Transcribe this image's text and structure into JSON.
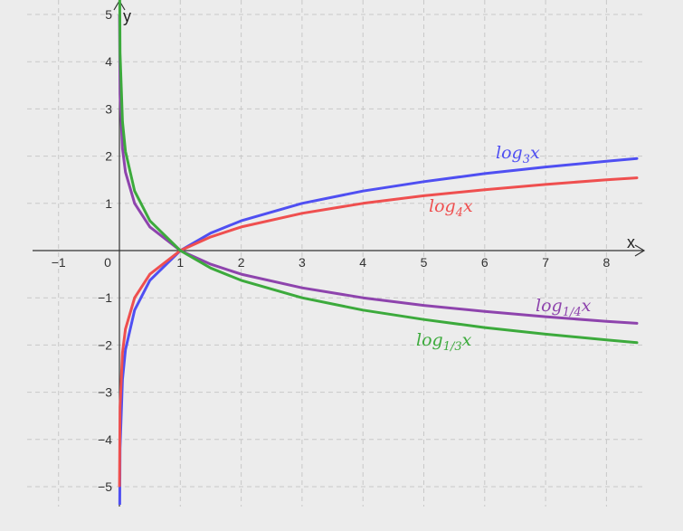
{
  "chart_data": {
    "type": "line",
    "title": "",
    "xlabel": "x",
    "ylabel": "y",
    "xlim": [
      -1.5,
      8.5
    ],
    "ylim": [
      -5.4,
      5.3
    ],
    "grid": true,
    "x_ticks": [
      "−1",
      "0",
      "1",
      "2",
      "3",
      "4",
      "5",
      "6",
      "7",
      "8"
    ],
    "x_tick_values": [
      -1,
      0,
      1,
      2,
      3,
      4,
      5,
      6,
      7,
      8
    ],
    "y_ticks": [
      "5",
      "4",
      "3",
      "2",
      "1",
      "−1",
      "−2",
      "−3",
      "−4",
      "−5"
    ],
    "y_tick_values": [
      5,
      4,
      3,
      2,
      1,
      -1,
      -2,
      -3,
      -4,
      -5
    ],
    "series": [
      {
        "name": "log_3 x",
        "label_base": "log",
        "label_sub": "3",
        "label_var": "x",
        "color": "#4f4ff2",
        "x": [
          0.001,
          0.01,
          0.05,
          0.1,
          0.25,
          0.5,
          1,
          1.5,
          2,
          3,
          4,
          5,
          6,
          7,
          8,
          8.5
        ],
        "y": [
          -6.29,
          -4.19,
          -2.73,
          -2.1,
          -1.26,
          -0.63,
          0,
          0.37,
          0.63,
          1,
          1.26,
          1.46,
          1.63,
          1.77,
          1.89,
          1.95
        ]
      },
      {
        "name": "log_4 x",
        "label_base": "log",
        "label_sub": "4",
        "label_var": "x",
        "color": "#ef4f4f",
        "x": [
          0.001,
          0.01,
          0.05,
          0.1,
          0.25,
          0.5,
          1,
          1.5,
          2,
          3,
          4,
          5,
          6,
          7,
          8,
          8.5
        ],
        "y": [
          -4.98,
          -3.32,
          -2.16,
          -1.66,
          -1,
          -0.5,
          0,
          0.29,
          0.5,
          0.79,
          1,
          1.16,
          1.29,
          1.4,
          1.5,
          1.54
        ]
      },
      {
        "name": "log_1/4 x",
        "label_base": "log",
        "label_sub": "1/4",
        "label_var": "x",
        "color": "#8e44ad",
        "x": [
          0.001,
          0.01,
          0.05,
          0.1,
          0.25,
          0.5,
          1,
          1.5,
          2,
          3,
          4,
          5,
          6,
          7,
          8,
          8.5
        ],
        "y": [
          4.98,
          3.32,
          2.16,
          1.66,
          1,
          0.5,
          0,
          -0.29,
          -0.5,
          -0.79,
          -1,
          -1.16,
          -1.29,
          -1.4,
          -1.5,
          -1.54
        ]
      },
      {
        "name": "log_1/3 x",
        "label_base": "log",
        "label_sub": "1/3",
        "label_var": "x",
        "color": "#3caa3c",
        "x": [
          0.001,
          0.01,
          0.05,
          0.1,
          0.25,
          0.5,
          1,
          1.5,
          2,
          3,
          4,
          5,
          6,
          7,
          8,
          8.5
        ],
        "y": [
          6.29,
          4.19,
          2.73,
          2.1,
          1.26,
          0.63,
          0,
          -0.37,
          -0.63,
          -1,
          -1.26,
          -1.46,
          -1.63,
          -1.77,
          -1.89,
          -1.95
        ]
      }
    ]
  }
}
